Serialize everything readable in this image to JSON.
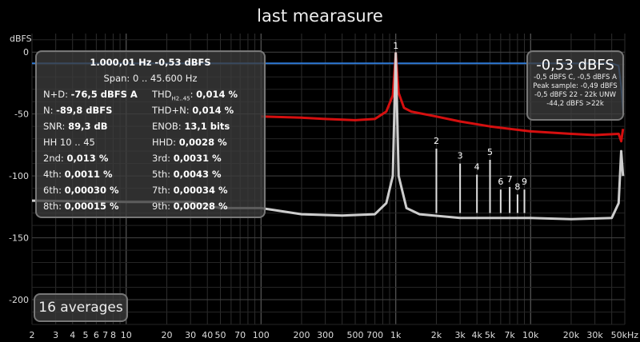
{
  "title": "last mearasure",
  "chart_data": {
    "type": "line",
    "xscale": "log",
    "xlim": [
      2,
      50000
    ],
    "ylim": [
      -220,
      15
    ],
    "ylabel": "dBFS",
    "yticks": [
      0,
      -50,
      -100,
      -150,
      -200
    ],
    "xticks": [
      {
        "v": 2,
        "l": "2"
      },
      {
        "v": 3,
        "l": "3"
      },
      {
        "v": 4,
        "l": "4"
      },
      {
        "v": 5,
        "l": "5"
      },
      {
        "v": 6,
        "l": "6"
      },
      {
        "v": 7,
        "l": "7"
      },
      {
        "v": 8,
        "l": "8"
      },
      {
        "v": 10,
        "l": "10"
      },
      {
        "v": 20,
        "l": "20"
      },
      {
        "v": 30,
        "l": "30"
      },
      {
        "v": 40,
        "l": "40"
      },
      {
        "v": 50,
        "l": "50"
      },
      {
        "v": 70,
        "l": "70"
      },
      {
        "v": 100,
        "l": "100"
      },
      {
        "v": 200,
        "l": "200"
      },
      {
        "v": 300,
        "l": "300"
      },
      {
        "v": 500,
        "l": "500"
      },
      {
        "v": 700,
        "l": "700"
      },
      {
        "v": 1000,
        "l": "1k"
      },
      {
        "v": 2000,
        "l": "2k"
      },
      {
        "v": 3000,
        "l": "3k"
      },
      {
        "v": 4000,
        "l": "4k"
      },
      {
        "v": 5000,
        "l": "5k"
      },
      {
        "v": 7000,
        "l": "7k"
      },
      {
        "v": 10000,
        "l": "10k"
      },
      {
        "v": 20000,
        "l": "20k"
      },
      {
        "v": 30000,
        "l": "30k"
      },
      {
        "v": 50000,
        "l": "50kHz"
      }
    ],
    "grid": true,
    "series": [
      {
        "color": "#2f7fe0",
        "points": [
          [
            2,
            -9
          ],
          [
            10,
            -9
          ],
          [
            100,
            -9
          ],
          [
            1000,
            -9
          ],
          [
            10000,
            -9
          ],
          [
            40000,
            -9
          ],
          [
            45000,
            -11
          ],
          [
            47000,
            -28
          ],
          [
            48500,
            -48
          ]
        ]
      },
      {
        "color": "#e01010",
        "points": [
          [
            100,
            -52
          ],
          [
            200,
            -53
          ],
          [
            300,
            -54
          ],
          [
            500,
            -55
          ],
          [
            700,
            -54
          ],
          [
            850,
            -48
          ],
          [
            950,
            -35
          ],
          [
            1000,
            -1
          ],
          [
            1050,
            -33
          ],
          [
            1150,
            -45
          ],
          [
            1300,
            -48
          ],
          [
            2000,
            -52
          ],
          [
            3000,
            -56
          ],
          [
            5000,
            -60
          ],
          [
            10000,
            -64
          ],
          [
            20000,
            -66
          ],
          [
            30000,
            -67
          ],
          [
            45000,
            -66
          ],
          [
            47000,
            -72
          ],
          [
            48500,
            -62
          ]
        ]
      },
      {
        "color": "#d8d8d8",
        "points": [
          [
            2,
            -120
          ],
          [
            10,
            -121
          ],
          [
            30,
            -121
          ],
          [
            50,
            -126
          ],
          [
            100,
            -126
          ],
          [
            200,
            -131
          ],
          [
            400,
            -132
          ],
          [
            700,
            -131
          ],
          [
            850,
            -122
          ],
          [
            950,
            -100
          ],
          [
            1000,
            -1
          ],
          [
            1050,
            -100
          ],
          [
            1200,
            -126
          ],
          [
            1500,
            -131
          ],
          [
            3000,
            -134
          ],
          [
            10000,
            -134
          ],
          [
            20000,
            -135
          ],
          [
            40000,
            -134
          ],
          [
            45000,
            -122
          ],
          [
            47000,
            -80
          ],
          [
            48500,
            -100
          ]
        ]
      }
    ],
    "harmonics": [
      {
        "label": "1",
        "f": 1000,
        "db": -1
      },
      {
        "label": "2",
        "f": 2000,
        "db": -78
      },
      {
        "label": "3",
        "f": 3000,
        "db": -90
      },
      {
        "label": "4",
        "f": 4000,
        "db": -99
      },
      {
        "label": "5",
        "f": 5000,
        "db": -87
      },
      {
        "label": "6",
        "f": 6000,
        "db": -111
      },
      {
        "label": "7",
        "f": 7000,
        "db": -109
      },
      {
        "label": "8",
        "f": 8000,
        "db": -115
      },
      {
        "label": "9",
        "f": 9000,
        "db": -111
      }
    ]
  },
  "stats": {
    "line1": "1.000,01 Hz  -0,53 dBFS",
    "line2": "Span: 0 .. 45.600 Hz",
    "rows": [
      {
        "l1": "N+D:",
        "v1": "-76,5 dBFS A",
        "l2": "THD",
        "l2sub": "H2..45",
        "v2": "0,014 %"
      },
      {
        "l1": "N:",
        "v1": "-89,8 dBFS",
        "l2": "THD+N:",
        "v2": "0,014 %"
      },
      {
        "l1": "SNR:",
        "v1": "89,3 dB",
        "l2": "ENOB:",
        "v2": "13,1 bits"
      },
      {
        "l1": "HH 10 .. 45",
        "v1": "",
        "l2": "HHD:",
        "v2": "0,0028 %"
      },
      {
        "l1": "2nd:",
        "v1": "0,013 %",
        "l2": "3rd:",
        "v2": "0,0031 %"
      },
      {
        "l1": "4th:",
        "v1": "0,0011 %",
        "l2": "5th:",
        "v2": "0,0043 %"
      },
      {
        "l1": "6th:",
        "v1": "0,00030 %",
        "l2": "7th:",
        "v2": "0,00034 %"
      },
      {
        "l1": "8th:",
        "v1": "0,00015 %",
        "l2": "9th:",
        "v2": "0,00028 %"
      }
    ]
  },
  "peak": {
    "value": "-0,53 dBFS",
    "lines": [
      "-0,5 dBFS C, -0,5 dBFS A",
      "Peak sample: -0,49 dBFS",
      "-0,5 dBFS 22 - 22k UNW",
      "-44,2 dBFS >22k"
    ]
  },
  "averages": "16 averages"
}
